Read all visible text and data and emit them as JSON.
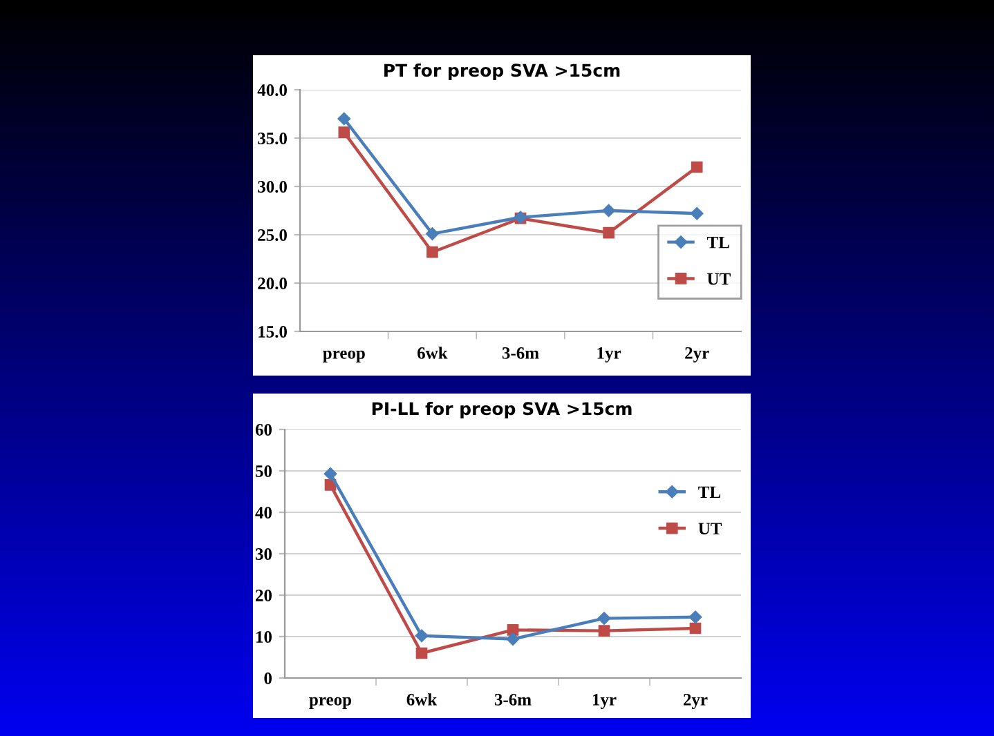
{
  "chart_data": [
    {
      "type": "line",
      "title": "PT for preop SVA >15cm",
      "categories": [
        "preop",
        "6wk",
        "3-6m",
        "1yr",
        "2yr"
      ],
      "series": [
        {
          "name": "TL",
          "color": "#4a7ebb",
          "marker": "diamond",
          "values": [
            37.0,
            25.1,
            26.8,
            27.5,
            27.2
          ]
        },
        {
          "name": "UT",
          "color": "#be4b48",
          "marker": "square",
          "values": [
            35.6,
            23.2,
            26.7,
            25.2,
            32.0
          ]
        }
      ],
      "ylim": [
        15,
        40
      ],
      "yticks": [
        {
          "value": 15,
          "label": "15.0"
        },
        {
          "value": 20,
          "label": "20.0"
        },
        {
          "value": 25,
          "label": "25.0"
        },
        {
          "value": 30,
          "label": "30.0"
        },
        {
          "value": 35,
          "label": "35.0"
        },
        {
          "value": 40,
          "label": "40.0"
        }
      ],
      "grid": "y",
      "legend": "right"
    },
    {
      "type": "line",
      "title": "PI-LL for preop SVA >15cm",
      "categories": [
        "preop",
        "6wk",
        "3-6m",
        "1yr",
        "2yr"
      ],
      "series": [
        {
          "name": "TL",
          "color": "#4a7ebb",
          "marker": "diamond",
          "values": [
            49.3,
            10.2,
            9.4,
            14.4,
            14.7
          ]
        },
        {
          "name": "UT",
          "color": "#be4b48",
          "marker": "square",
          "values": [
            46.6,
            6.0,
            11.6,
            11.4,
            12.0
          ]
        }
      ],
      "ylim": [
        0,
        60
      ],
      "yticks": [
        0,
        10,
        20,
        30,
        40,
        50,
        60
      ],
      "grid": "y",
      "legend": "upper right"
    }
  ]
}
